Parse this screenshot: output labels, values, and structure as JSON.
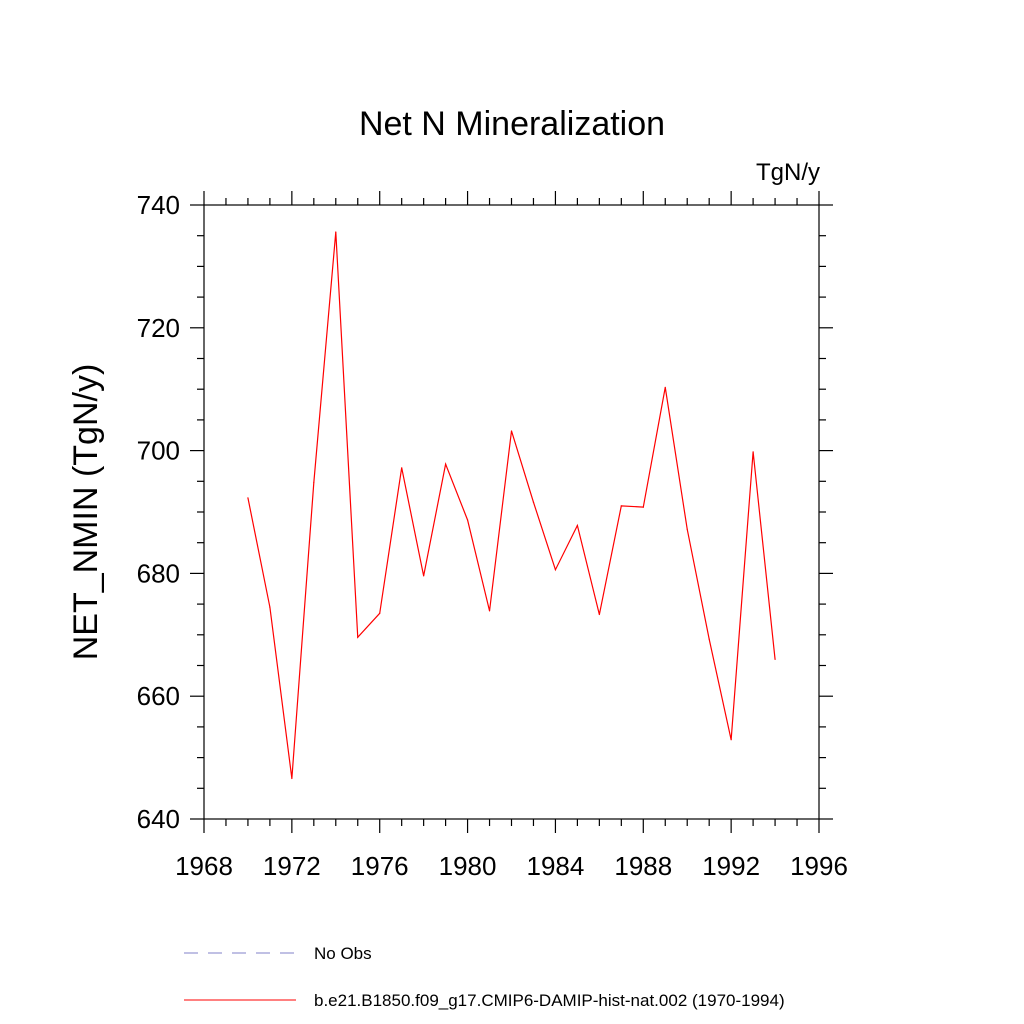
{
  "chart_data": {
    "type": "line",
    "title": "Net N Mineralization",
    "units": "TgN/y",
    "ylabel": "NET_NMIN  (TgN/y)",
    "xlabel": "",
    "xlim": [
      1968,
      1996
    ],
    "ylim": [
      640,
      740
    ],
    "xticks": [
      1968,
      1972,
      1976,
      1980,
      1984,
      1988,
      1992,
      1996
    ],
    "yticks": [
      640,
      660,
      680,
      700,
      720,
      740
    ],
    "x_minor_step": 1,
    "y_minor_step": 5,
    "grid": false,
    "series": [
      {
        "name": "b.e21.B1850.f09_g17.CMIP6-DAMIP-hist-nat.002 (1970-1994)",
        "color": "#ff0000",
        "style": "solid",
        "x": [
          1970,
          1971,
          1972,
          1973,
          1974,
          1975,
          1976,
          1977,
          1978,
          1979,
          1980,
          1981,
          1982,
          1983,
          1984,
          1985,
          1986,
          1987,
          1988,
          1989,
          1990,
          1991,
          1992,
          1993,
          1994
        ],
        "values": [
          692.3,
          674.5,
          646.6,
          694.8,
          735.6,
          669.6,
          673.5,
          697.2,
          679.6,
          697.8,
          688.7,
          673.9,
          703.2,
          691.6,
          680.6,
          687.8,
          673.3,
          691.0,
          690.8,
          710.3,
          687.2,
          669.3,
          652.9,
          699.8,
          666.0
        ]
      }
    ],
    "legend": {
      "placement": "bottom",
      "entries": [
        {
          "label": "No Obs",
          "color": "#8080c8",
          "style": "dashed"
        },
        {
          "label": "b.e21.B1850.f09_g17.CMIP6-DAMIP-hist-nat.002 (1970-1994)",
          "color": "#ff0000",
          "style": "solid"
        }
      ]
    }
  }
}
